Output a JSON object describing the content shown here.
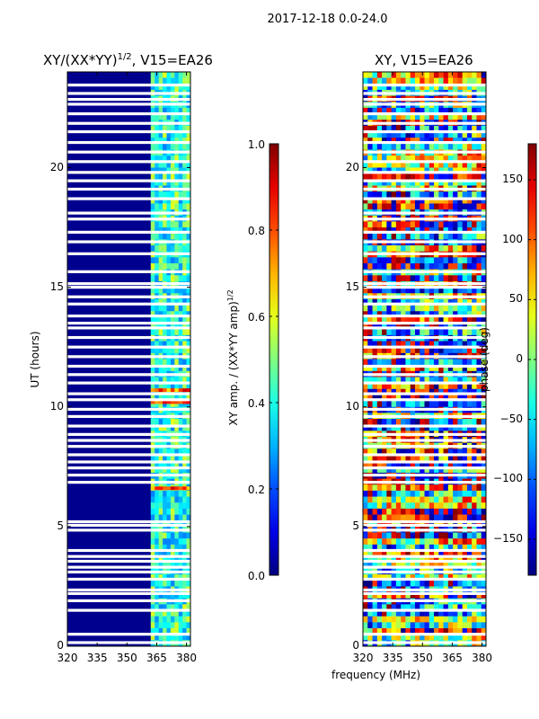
{
  "chart_data": {
    "type": "heatmap",
    "suptitle": "2017-12-18 0.0-24.0",
    "xlabel": "frequency (MHz)",
    "panels": [
      {
        "id": "left",
        "title_main": "XY/(XX*YY)",
        "title_sup": "1/2",
        "title_suffix": ", V15=EA26",
        "ylabel": "UT (hours)",
        "x_range": [
          320,
          382
        ],
        "y_range": [
          0,
          24
        ],
        "x_ticks": [
          320,
          335,
          350,
          365,
          380
        ],
        "y_ticks": [
          0,
          5,
          10,
          15,
          20
        ],
        "colorbar": {
          "label_main": "XY amp. / (XX*YY amp)",
          "label_sup": "1/2",
          "range": [
            0.0,
            1.0
          ],
          "ticks": [
            "0.0",
            "0.2",
            "0.4",
            "0.6",
            "0.8",
            "1.0"
          ]
        },
        "background_color": "#00008f",
        "active_band_mhz": [
          362,
          382
        ],
        "active_band_value_range": [
          0.25,
          0.6
        ],
        "highlight_rows_hours": [
          6.6,
          10.7,
          10.2
        ]
      },
      {
        "id": "right",
        "title_main": "XY, V15=EA26",
        "x_range": [
          320,
          382
        ],
        "y_range": [
          0,
          24
        ],
        "x_ticks": [
          320,
          335,
          350,
          365,
          380
        ],
        "y_ticks": [
          0,
          5,
          10,
          15,
          20
        ],
        "colorbar": {
          "label_main": "phase (deg)",
          "range": [
            -180,
            180
          ],
          "ticks": [
            "150",
            "100",
            "50",
            "0",
            "−50",
            "−100",
            "−150"
          ],
          "tick_values": [
            150,
            100,
            50,
            0,
            -50,
            -100,
            -150
          ]
        },
        "value_range": [
          -180,
          180
        ]
      }
    ],
    "flagged_rows_hours": [
      0.15,
      0.5,
      1.5,
      1.9,
      2.2,
      2.35,
      2.8,
      3.1,
      3.3,
      3.55,
      3.75,
      4.0,
      4.85,
      5.05,
      5.2,
      6.85,
      7.15,
      7.45,
      7.7,
      8.0,
      8.35,
      8.6,
      8.85,
      9.2,
      9.6,
      9.9,
      10.3,
      10.55,
      11.0,
      11.35,
      11.7,
      12.1,
      12.5,
      12.9,
      13.3,
      13.5,
      13.8,
      14.3,
      14.6,
      15.0,
      15.15,
      15.65,
      16.4,
      16.9,
      17.3,
      17.85,
      18.1,
      18.7,
      19.1,
      19.45,
      19.8,
      20.25,
      20.65,
      21.05,
      21.5,
      21.85,
      22.25,
      22.65,
      22.85,
      23.1,
      23.45
    ]
  }
}
